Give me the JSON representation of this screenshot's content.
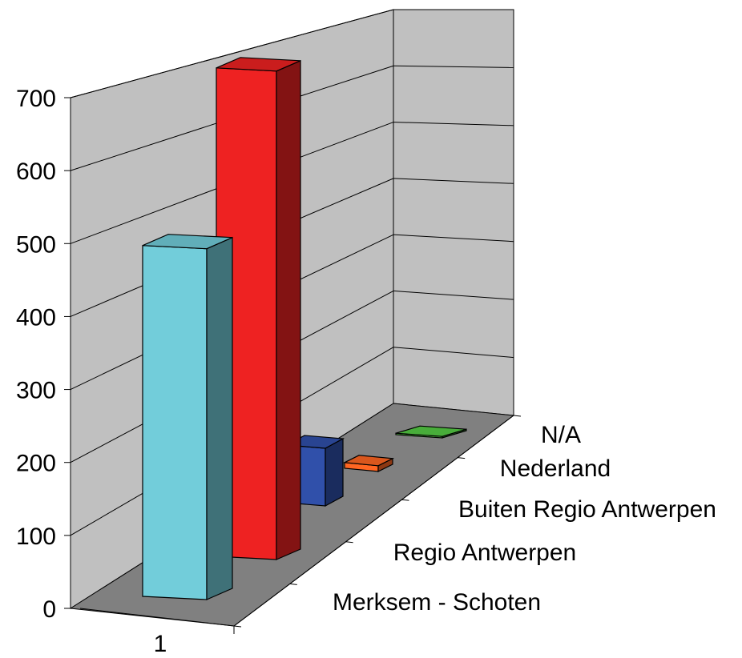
{
  "chart_data": {
    "type": "bar",
    "three_d": true,
    "categories": [
      "1"
    ],
    "series": [
      {
        "name": "Merksem - Schoten",
        "values": [
          487
        ],
        "color": "#72CDDA"
      },
      {
        "name": "Regio Antwerpen",
        "values": [
          678
        ],
        "color": "#EE2222"
      },
      {
        "name": "Buiten Regio Antwerpen",
        "values": [
          80
        ],
        "color": "#3050AA"
      },
      {
        "name": "Nederland",
        "values": [
          8
        ],
        "color": "#FF6622"
      },
      {
        "name": "N/A",
        "values": [
          2
        ],
        "color": "#55CC44"
      }
    ],
    "y_ticks": [
      "0",
      "100",
      "200",
      "300",
      "400",
      "500",
      "600",
      "700"
    ],
    "ylim": [
      0,
      700
    ],
    "grid": true,
    "colors": {
      "wall": "#C0C0C0",
      "floor": "#808080",
      "gridline": "#000000"
    }
  }
}
